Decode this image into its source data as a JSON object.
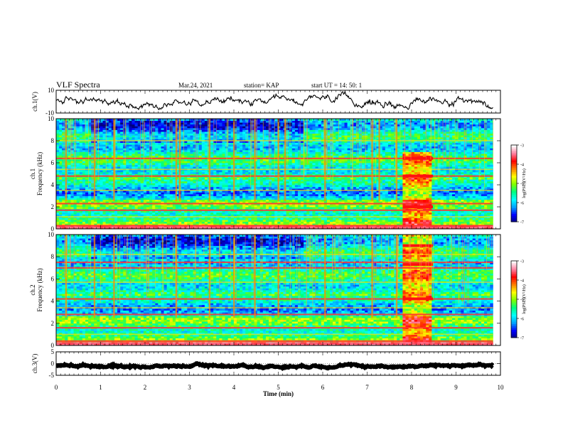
{
  "header": {
    "title": "VLF Spectra",
    "date": "Mar.24, 2021",
    "station": "station= KAP",
    "start": "start  UT  =   14: 50: 1"
  },
  "chart_data": [
    {
      "type": "line",
      "panel": "ch1-waveform",
      "ylabel": "ch.1(V)",
      "ylim": [
        -10,
        10
      ],
      "yticks": [
        "10",
        "-10"
      ],
      "x_range_min": [
        0,
        9.83
      ],
      "baseline_v": 0,
      "fluctuation_v": 3.5
    },
    {
      "type": "heatmap",
      "panel": "ch1-spectrogram",
      "ylabel": "ch.1 Frequency (kHz)",
      "ylim_khz": [
        0,
        10
      ],
      "yticks": [
        "0",
        "2",
        "4",
        "6",
        "8",
        "10"
      ],
      "x_range_min": [
        0,
        9.83
      ],
      "colorbar": {
        "label": "log(PSD)(V²/Hz)",
        "range": [
          -7,
          -3
        ],
        "ticks": [
          "-3",
          "-4",
          "-5",
          "-6",
          "-7"
        ]
      },
      "colormap": [
        "#00007f",
        "#0000ff",
        "#00a0ff",
        "#00ffff",
        "#00ff80",
        "#80ff00",
        "#ffff00",
        "#ff8000",
        "#ff0000",
        "#ff80a0",
        "#ffffff"
      ],
      "burst_min": [
        7.8,
        8.48
      ],
      "burst_band_khz": [
        0.2,
        7.0
      ],
      "strong_bands_khz": [
        0.3,
        1.7,
        2.3,
        4.8,
        6.4
      ],
      "weak_bands_khz": [
        1.1,
        3.5,
        5.4,
        8.0
      ],
      "burst_lines_khz": [
        2.0,
        4.8,
        6.4
      ],
      "sferic_min": [
        0.22,
        0.86,
        1.3,
        2.7,
        2.78,
        3.45,
        4.0,
        4.47,
        5.0,
        5.15,
        6.05,
        7.11,
        7.27,
        7.66
      ]
    },
    {
      "type": "heatmap",
      "panel": "ch2-spectrogram",
      "ylabel": "ch.2 Frequency (kHz)",
      "ylim_khz": [
        0,
        10
      ],
      "yticks": [
        "0",
        "2",
        "4",
        "6",
        "8",
        "10"
      ],
      "x_range_min": [
        0,
        9.83
      ],
      "colorbar": {
        "label": "log(PSD)(V²/Hz)",
        "range": [
          -7,
          -3
        ],
        "ticks": [
          "-3",
          "-4",
          "-5",
          "-6",
          "-7"
        ]
      },
      "colormap": [
        "#00007f",
        "#0000ff",
        "#00a0ff",
        "#00ffff",
        "#00ff80",
        "#80ff00",
        "#ffff00",
        "#ff8000",
        "#ff0000",
        "#ff80a0",
        "#ffffff"
      ],
      "burst_min": [
        7.8,
        8.48
      ],
      "burst_band_khz": [
        0.2,
        10.0
      ],
      "strong_bands_khz": [
        0.4,
        1.6,
        2.8,
        4.2,
        7.0,
        7.5
      ],
      "weak_bands_khz": [
        1.0,
        3.4,
        5.7,
        8.2
      ],
      "burst_lines_khz": [
        4.2,
        7.3,
        9.0
      ],
      "sferic_min": [
        0.22,
        0.86,
        1.3,
        2.7,
        3.45,
        4.0,
        4.47,
        5.0,
        6.05,
        7.11,
        7.66
      ]
    },
    {
      "type": "line",
      "panel": "ch3-waveform",
      "ylabel": "ch.3(V)",
      "ylim": [
        -5,
        5
      ],
      "yticks": [
        "5",
        "0",
        "-5"
      ],
      "x_range_min": [
        0,
        9.83
      ],
      "baseline_v": -1.0,
      "fluctuation_v": 0.5
    }
  ],
  "x_axis": {
    "xlabel": "Time  (min)",
    "xlim": [
      0,
      10
    ],
    "ticks": [
      "0",
      "1",
      "2",
      "3",
      "4",
      "5",
      "6",
      "7",
      "8",
      "9",
      "10"
    ]
  }
}
